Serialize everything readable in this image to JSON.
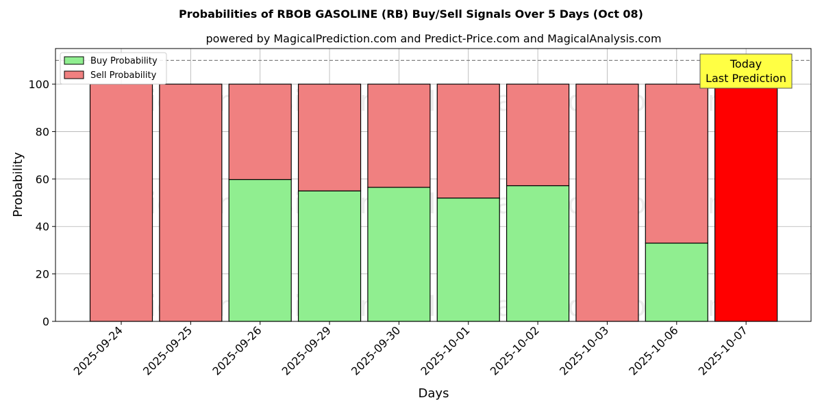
{
  "chart_data": {
    "type": "bar",
    "stacked": true,
    "title": "Probabilities of RBOB GASOLINE (RB) Buy/Sell Signals Over 5 Days (Oct 08)",
    "subtitle": "powered by MagicalPrediction.com and Predict-Price.com and MagicalAnalysis.com",
    "xlabel": "Days",
    "ylabel": "Probability",
    "ylim": [
      0,
      115
    ],
    "yticks": [
      "0",
      "20",
      "40",
      "60",
      "80",
      "100"
    ],
    "categories": [
      "2025-09-24",
      "2025-09-25",
      "2025-09-26",
      "2025-09-29",
      "2025-09-30",
      "2025-10-01",
      "2025-10-02",
      "2025-10-03",
      "2025-10-06",
      "2025-10-07"
    ],
    "series": [
      {
        "name": "Buy Probability",
        "color": "#90ee90",
        "values": [
          0,
          0,
          59.8,
          55.0,
          56.5,
          52.0,
          57.2,
          0,
          33.0,
          0
        ]
      },
      {
        "name": "Sell Probability",
        "color": "#f08080",
        "values": [
          100,
          100,
          40.2,
          45.0,
          43.5,
          48.0,
          42.8,
          100,
          67.0,
          100
        ]
      }
    ],
    "highlight": {
      "index": 9,
      "color": "#ff0000"
    },
    "reference_line": {
      "y": 110,
      "style": "dashed",
      "color": "#808080"
    },
    "annotation": {
      "line1": "Today",
      "line2": "Last Prediction",
      "background": "#ffff44"
    },
    "watermarks": [
      "MagicalAnalysis.com",
      "MagicalPrediction.com"
    ],
    "legend_placement": "top-left",
    "grid": true
  }
}
